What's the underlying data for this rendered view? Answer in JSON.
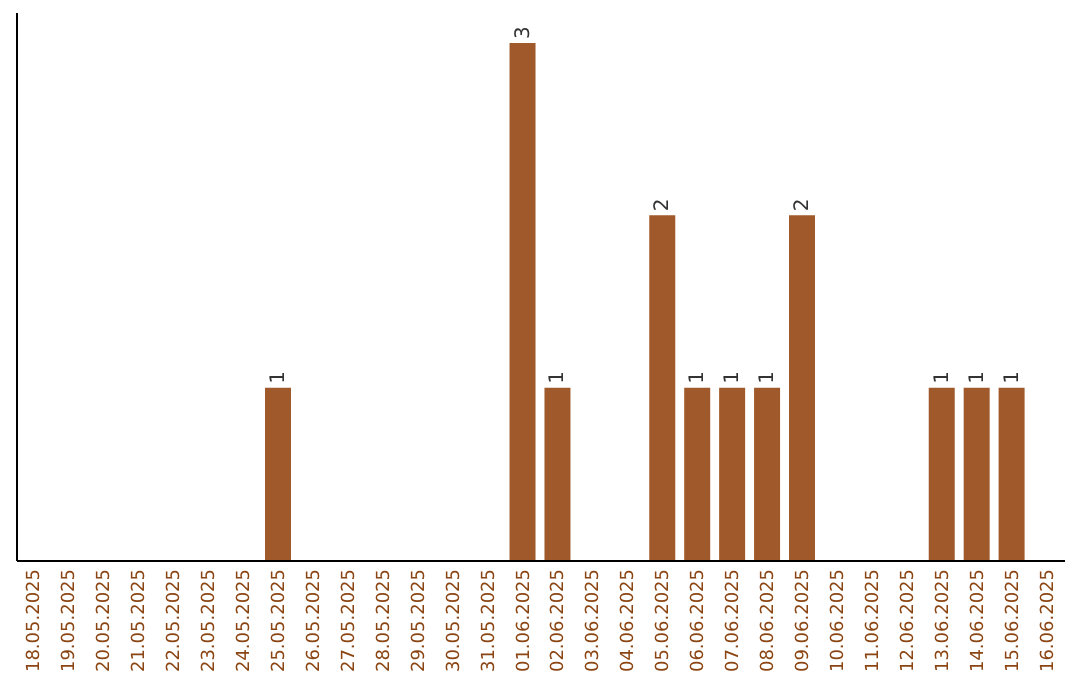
{
  "chart_data": {
    "type": "bar",
    "categories": [
      "18.05.2025",
      "19.05.2025",
      "20.05.2025",
      "21.05.2025",
      "22.05.2025",
      "23.05.2025",
      "24.05.2025",
      "25.05.2025",
      "26.05.2025",
      "27.05.2025",
      "28.05.2025",
      "29.05.2025",
      "30.05.2025",
      "31.05.2025",
      "01.06.2025",
      "02.06.2025",
      "03.06.2025",
      "04.06.2025",
      "05.06.2025",
      "06.06.2025",
      "07.06.2025",
      "08.06.2025",
      "09.06.2025",
      "10.06.2025",
      "11.06.2025",
      "12.06.2025",
      "13.06.2025",
      "14.06.2025",
      "15.06.2025",
      "16.06.2025"
    ],
    "values": [
      0,
      0,
      0,
      0,
      0,
      0,
      0,
      1,
      0,
      0,
      0,
      0,
      0,
      0,
      3,
      1,
      0,
      0,
      2,
      1,
      1,
      1,
      2,
      0,
      0,
      0,
      1,
      1,
      1,
      0
    ],
    "value_labels": [
      null,
      null,
      null,
      null,
      null,
      null,
      null,
      "1",
      null,
      null,
      null,
      null,
      null,
      null,
      "3",
      "1",
      null,
      null,
      "2",
      "1",
      "1",
      "1",
      "2",
      null,
      null,
      null,
      "1",
      "1",
      "1",
      null
    ],
    "color": "#a0592a",
    "grid": false
  }
}
